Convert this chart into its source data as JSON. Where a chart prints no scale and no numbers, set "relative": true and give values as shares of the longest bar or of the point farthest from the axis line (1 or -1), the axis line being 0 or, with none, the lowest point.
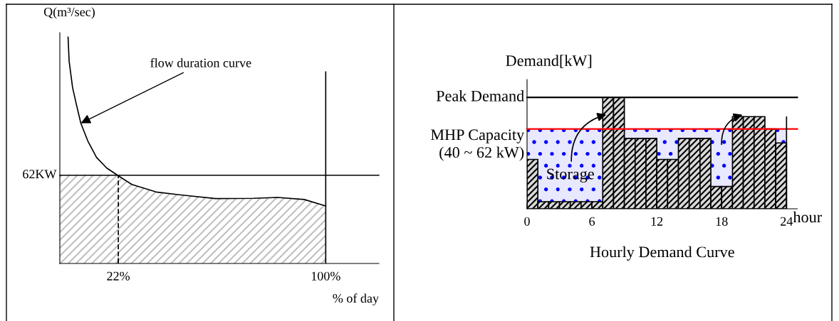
{
  "chart_data": [
    {
      "type": "line",
      "relative": true,
      "ylabel": "Q(m³/sec)",
      "xlabel": "% of day",
      "xlim": [
        0,
        120
      ],
      "xticks": [
        {
          "value": 22,
          "label": "22%"
        },
        {
          "value": 100,
          "label": "100%"
        }
      ],
      "series": [
        {
          "type": "area",
          "color": "#c0c0c0",
          "x": [
            0,
            21.7,
            27.1,
            36.2,
            46.2,
            58.6,
            72.9,
            81.9,
            91.9,
            100
          ],
          "values": [
            0.39,
            0.39,
            0.349,
            0.316,
            0.302,
            0.287,
            0.288,
            0.292,
            0.283,
            0.254
          ]
        },
        {
          "type": "line",
          "color": "#000000",
          "x": [
            3.1,
            3.5,
            4.8,
            6.2,
            7.9,
            10.5,
            13.8,
            17.6,
            21.7,
            27.1,
            36.2,
            46.2,
            58.6,
            72.9,
            81.9,
            91.9,
            100
          ],
          "values": [
            1.0,
            0.894,
            0.777,
            0.704,
            0.62,
            0.542,
            0.469,
            0.422,
            0.39,
            0.349,
            0.316,
            0.302,
            0.287,
            0.288,
            0.292,
            0.283,
            0.254
          ]
        },
        {
          "type": "line",
          "color": "#000000",
          "line_style": "dashed",
          "x": [
            22,
            22
          ],
          "values": [
            0,
            0.39
          ]
        }
      ],
      "ref_lines": [
        {
          "axis": "y",
          "value": 0.39,
          "label": "62KW",
          "color": "#000000"
        },
        {
          "axis": "x",
          "value": 100,
          "color": "#000000"
        }
      ],
      "annotations": [
        {
          "text": "flow duration curve",
          "x": 7.9,
          "y": 0.62
        }
      ]
    },
    {
      "type": "bar",
      "relative": true,
      "stacked": true,
      "title": "Hourly Demand Curve",
      "ylabel": "Demand[kW]",
      "xlabel": "hour",
      "xlim": [
        0,
        25
      ],
      "xticks": [
        0,
        6,
        12,
        18,
        24
      ],
      "x": [
        0.5,
        1.5,
        2.5,
        3.5,
        4.5,
        5.5,
        6.5,
        7.5,
        8.5,
        9.5,
        10.5,
        11.5,
        12.5,
        13.5,
        14.5,
        15.5,
        16.5,
        17.5,
        18.5,
        19.5,
        20.5,
        21.5,
        22.5,
        23.5
      ],
      "series": [
        {
          "color": "#000000",
          "values": [
            0.443,
            0.064,
            0.064,
            0.064,
            0.064,
            0.064,
            0.064,
            1.0,
            1.0,
            0.632,
            0.632,
            0.632,
            0.443,
            0.443,
            0.632,
            0.632,
            0.632,
            0.2,
            0.2,
            0.827,
            0.827,
            0.827,
            0.716,
            0.591
          ]
        },
        {
          "color": "#e8e8ff",
          "values": [
            0.273,
            0.652,
            0.652,
            0.652,
            0.652,
            0.652,
            0.652,
            null,
            null,
            0.084,
            0.084,
            0.084,
            0.273,
            0.273,
            0.084,
            0.084,
            0.084,
            0.516,
            0.516,
            null,
            null,
            null,
            null,
            0.125
          ]
        }
      ],
      "ref_lines": [
        {
          "axis": "x",
          "value": 24,
          "color": "#000000"
        },
        {
          "axis": "y",
          "value": 1.0,
          "label": "Peak Demand",
          "color": "#000000"
        },
        {
          "axis": "y",
          "value": 0.716,
          "label": "MHP Capacity\n(40 ~ 62 kW)",
          "color": "#ff0000"
        }
      ],
      "annotations": [
        {
          "text": "Storage",
          "x": 4,
          "y": 0.3
        }
      ]
    }
  ]
}
